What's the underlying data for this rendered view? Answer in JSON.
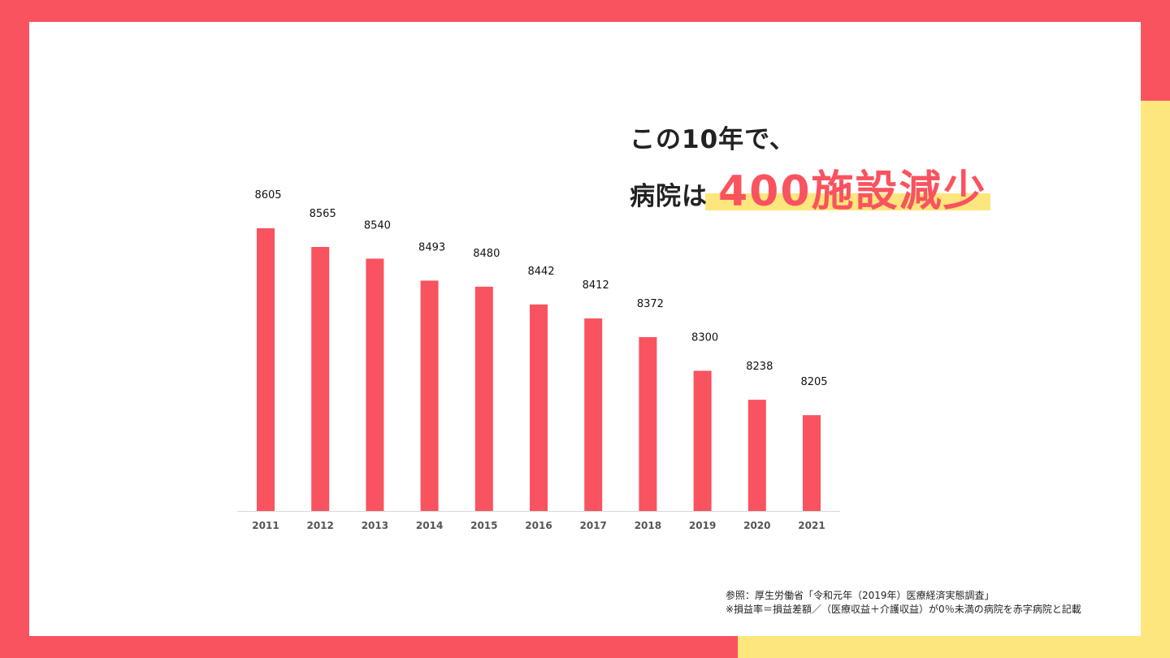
{
  "headline": {
    "line1": "この10年で、",
    "line2_prefix": "病院は",
    "emphasis": "400施設減少"
  },
  "footnote": {
    "source": "参照：厚生労働省「令和元年（2019年）医療経済実態調査」",
    "note": "※損益率＝損益差額／（医療収益＋介護収益）が0％未満の病院を赤字病院と記載"
  },
  "colors": {
    "accent": "#f9535f",
    "highlight": "#fde67d",
    "background": "#ffffff"
  },
  "chart_data": {
    "type": "bar",
    "title": "",
    "xlabel": "",
    "ylabel": "",
    "categories": [
      "2011",
      "2012",
      "2013",
      "2014",
      "2015",
      "2016",
      "2017",
      "2018",
      "2019",
      "2020",
      "2021"
    ],
    "values": [
      8605,
      8565,
      8540,
      8493,
      8480,
      8442,
      8412,
      8372,
      8300,
      8238,
      8205
    ],
    "ylim": [
      8000,
      8605
    ],
    "grid": false,
    "legend": "none"
  }
}
